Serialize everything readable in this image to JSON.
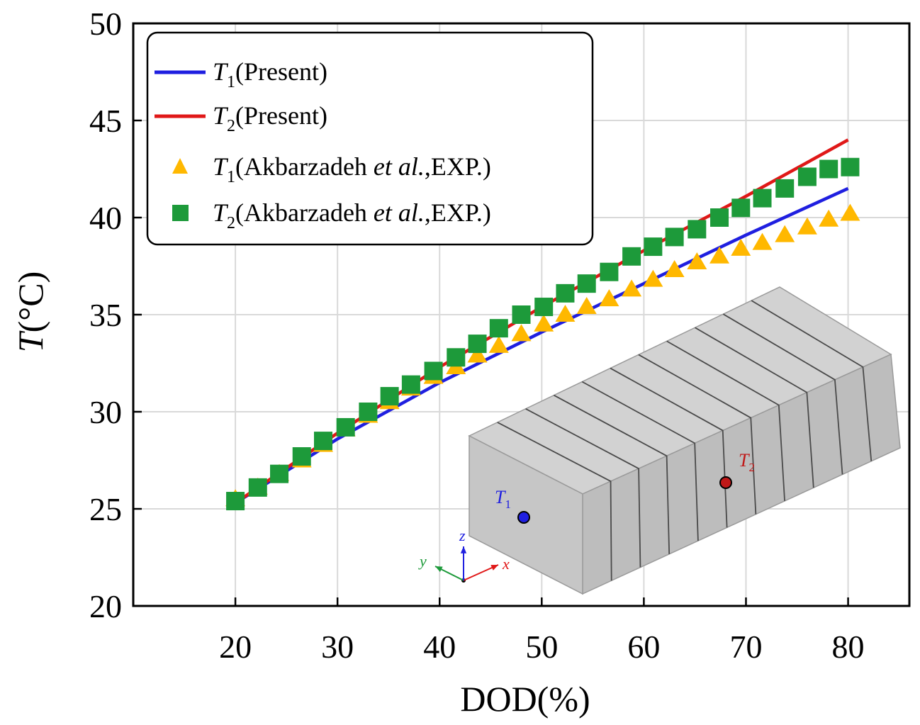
{
  "chart_data": {
    "type": "line",
    "title": "",
    "xlabel": "DOD(%)",
    "ylabel": {
      "symbol": "T",
      "unit": "(°C)"
    },
    "xlim": [
      10,
      86
    ],
    "ylim": [
      20,
      50
    ],
    "xticks": [
      20,
      30,
      40,
      50,
      60,
      70,
      80
    ],
    "yticks": [
      20,
      25,
      30,
      35,
      40,
      45,
      50
    ],
    "grid": true,
    "legend_position": "top-left",
    "series": [
      {
        "name": {
          "symbol": "T",
          "sub": "1",
          "text": "(Present)"
        },
        "kind": "line",
        "color": "#1f1fe0",
        "x": [
          20,
          30,
          40,
          50,
          60,
          70,
          80
        ],
        "y": [
          25.3,
          28.6,
          31.5,
          34.1,
          36.6,
          39.1,
          41.5
        ]
      },
      {
        "name": {
          "symbol": "T",
          "sub": "2",
          "text": "(Present)"
        },
        "kind": "line",
        "color": "#e01818",
        "x": [
          20,
          30,
          40,
          50,
          60,
          70,
          80
        ],
        "y": [
          25.3,
          28.9,
          32.3,
          35.4,
          38.3,
          41.1,
          44.0
        ]
      },
      {
        "name": {
          "symbol": "T",
          "sub": "1",
          "text": "(Akbarzadeh ",
          "italic": "et al.",
          "tail": ",EXP.)"
        },
        "kind": "triangle",
        "color": "#ffb800",
        "x": [
          20,
          22.2,
          24.3,
          26.5,
          28.6,
          30.8,
          33.0,
          35.1,
          37.2,
          39.4,
          41.6,
          43.7,
          45.8,
          48.0,
          50.2,
          52.3,
          54.4,
          56.6,
          58.8,
          60.9,
          63.0,
          65.2,
          67.4,
          69.5,
          71.6,
          73.8,
          76.0,
          78.1,
          80.2
        ],
        "y": [
          25.5,
          26.1,
          26.8,
          27.5,
          28.3,
          29.1,
          29.8,
          30.5,
          31.2,
          31.8,
          32.3,
          32.9,
          33.4,
          34.0,
          34.5,
          35.0,
          35.4,
          35.8,
          36.3,
          36.8,
          37.3,
          37.7,
          38.0,
          38.4,
          38.7,
          39.1,
          39.5,
          39.9,
          40.2
        ]
      },
      {
        "name": {
          "symbol": "T",
          "sub": "2",
          "text": "(Akbarzadeh ",
          "italic": "et al.",
          "tail": ",EXP.)"
        },
        "kind": "square",
        "color": "#1d9a3a",
        "x": [
          20,
          22.2,
          24.3,
          26.5,
          28.6,
          30.8,
          33.0,
          35.1,
          37.2,
          39.4,
          41.6,
          43.7,
          45.8,
          48.0,
          50.2,
          52.3,
          54.4,
          56.6,
          58.8,
          60.9,
          63.0,
          65.2,
          67.4,
          69.5,
          71.6,
          73.8,
          76.0,
          78.1,
          80.2
        ],
        "y": [
          25.4,
          26.1,
          26.8,
          27.7,
          28.5,
          29.2,
          30.0,
          30.8,
          31.4,
          32.1,
          32.8,
          33.5,
          34.3,
          35.0,
          35.4,
          36.1,
          36.6,
          37.2,
          38.0,
          38.5,
          39.0,
          39.4,
          40.0,
          40.5,
          41.0,
          41.5,
          42.1,
          42.5,
          42.6
        ]
      }
    ]
  },
  "inset": {
    "points": [
      {
        "symbol": "T",
        "sub": "1",
        "color": "#1f1fe0"
      },
      {
        "symbol": "T",
        "sub": "2",
        "color": "#c01818"
      }
    ],
    "axes": [
      {
        "label": "x",
        "color": "#e01818"
      },
      {
        "label": "y",
        "color": "#1d9a3a"
      },
      {
        "label": "z",
        "color": "#1f1fe0"
      }
    ]
  }
}
